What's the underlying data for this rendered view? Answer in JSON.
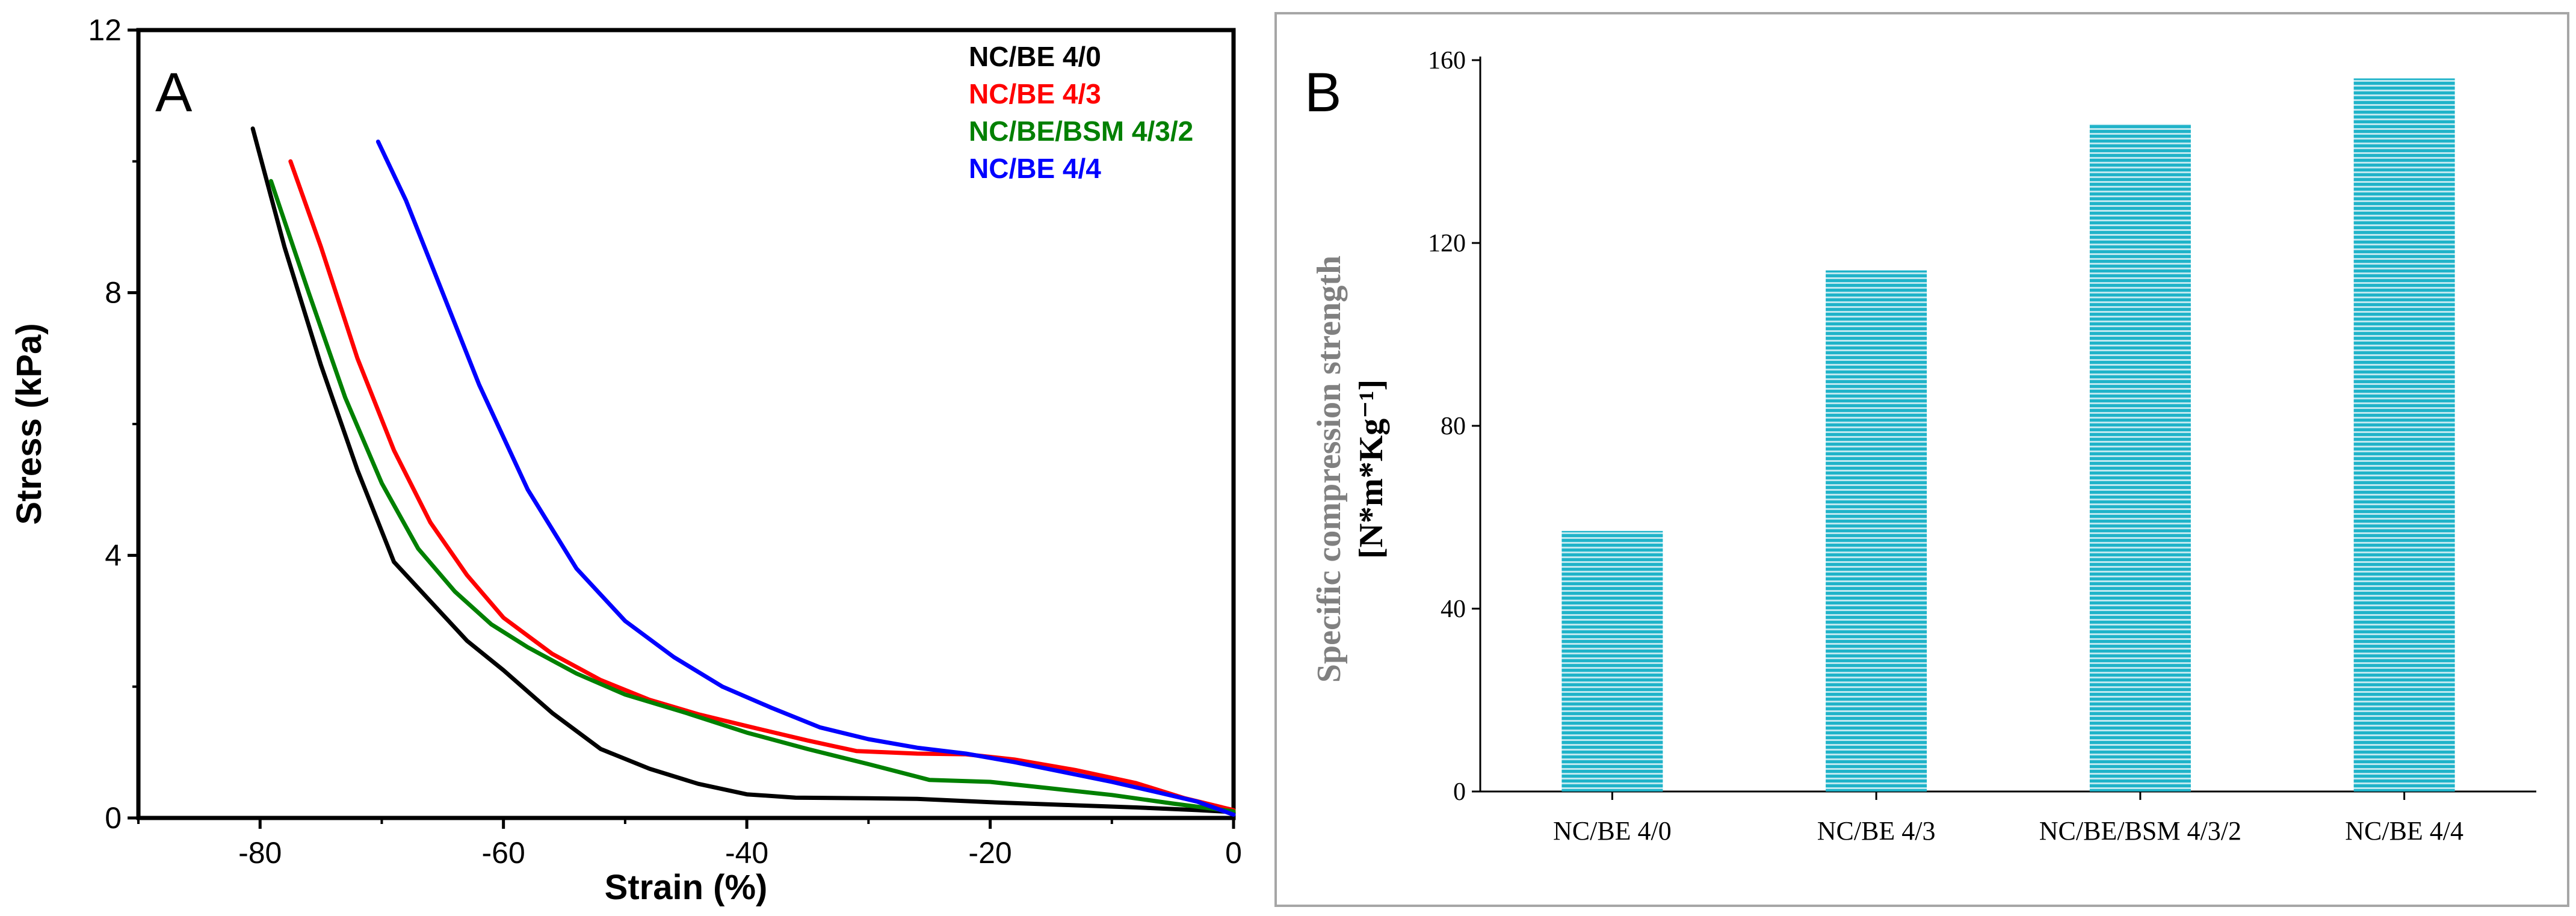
{
  "panels": {
    "a_label": "A",
    "b_label": "B"
  },
  "chart_data": [
    {
      "type": "line",
      "xlabel": "Strain (%)",
      "ylabel": "Stress (kPa)",
      "xlim": [
        -90,
        0
      ],
      "ylim": [
        0,
        12
      ],
      "xticks": [
        -80,
        -60,
        -40,
        -20,
        0
      ],
      "xtick_labels": [
        "-80",
        "-60",
        "-40",
        "-20",
        "0"
      ],
      "yticks": [
        0,
        4,
        8,
        12
      ],
      "ytick_labels": [
        "0",
        "4",
        "8",
        "12"
      ],
      "legend_position": "top-right",
      "series": [
        {
          "name": "NC/BE 4/0",
          "color": "#000000",
          "x": [
            -80.6,
            -78,
            -75,
            -72,
            -69,
            -66,
            -63,
            -60,
            -56,
            -52,
            -48,
            -44,
            -40,
            -36,
            -30,
            -26,
            -20,
            -14,
            -8,
            -3,
            0
          ],
          "y": [
            10.5,
            8.7,
            6.9,
            5.3,
            3.9,
            3.3,
            2.7,
            2.25,
            1.6,
            1.05,
            0.75,
            0.52,
            0.36,
            0.31,
            0.3,
            0.29,
            0.24,
            0.2,
            0.16,
            0.12,
            0.09
          ]
        },
        {
          "name": "NC/BE 4/3",
          "color": "#ff0000",
          "x": [
            -77.5,
            -75,
            -72,
            -69,
            -66,
            -63,
            -60,
            -56,
            -52,
            -48,
            -44,
            -40,
            -35,
            -31,
            -26,
            -22,
            -18,
            -13,
            -8,
            -4,
            0
          ],
          "y": [
            10.0,
            8.7,
            7.0,
            5.6,
            4.5,
            3.7,
            3.05,
            2.5,
            2.1,
            1.8,
            1.58,
            1.4,
            1.18,
            1.02,
            0.98,
            0.97,
            0.89,
            0.73,
            0.53,
            0.3,
            0.12
          ]
        },
        {
          "name": "NC/BE/BSM 4/3/2",
          "color": "#008000",
          "x": [
            -79.1,
            -76,
            -73,
            -70,
            -67,
            -64,
            -61,
            -58,
            -54,
            -50,
            -45,
            -40,
            -35,
            -30,
            -25,
            -20,
            -15,
            -10,
            -5,
            0
          ],
          "y": [
            9.7,
            8.0,
            6.4,
            5.1,
            4.1,
            3.45,
            2.95,
            2.6,
            2.2,
            1.88,
            1.6,
            1.3,
            1.05,
            0.82,
            0.58,
            0.55,
            0.45,
            0.35,
            0.22,
            0.1
          ]
        },
        {
          "name": "NC/BE 4/4",
          "color": "#0000ff",
          "x": [
            -70.3,
            -68,
            -65,
            -62,
            -58,
            -54,
            -50,
            -46,
            -42,
            -38,
            -34,
            -30,
            -26,
            -22,
            -18,
            -14,
            -10,
            -6,
            -3,
            0
          ],
          "y": [
            10.3,
            9.4,
            8.0,
            6.6,
            5.0,
            3.8,
            3.0,
            2.45,
            2.0,
            1.68,
            1.38,
            1.2,
            1.07,
            0.98,
            0.85,
            0.7,
            0.55,
            0.38,
            0.25,
            0.05
          ]
        }
      ]
    },
    {
      "type": "bar",
      "categories": [
        "NC/BE 4/0",
        "NC/BE 4/3",
        "NC/BE/BSM 4/3/2",
        "NC/BE 4/4"
      ],
      "values": [
        57,
        114,
        146,
        156
      ],
      "ylabel": "Specific compression strength",
      "ylabel_unit": "[N*m*Kg⁻¹]",
      "ylim": [
        0,
        160
      ],
      "yticks": [
        0,
        40,
        80,
        120,
        160
      ],
      "ytick_labels": [
        "0",
        "40",
        "80",
        "120",
        "160"
      ],
      "bar_color": "#20b0c8"
    }
  ]
}
